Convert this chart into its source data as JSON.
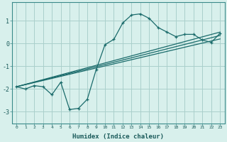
{
  "xlabel": "Humidex (Indice chaleur)",
  "background_color": "#d8f0ec",
  "grid_color": "#aacfcb",
  "line_color": "#1a6b6b",
  "xlim": [
    -0.5,
    23.5
  ],
  "ylim": [
    -3.5,
    1.8
  ],
  "yticks": [
    -3,
    -2,
    -1,
    0,
    1
  ],
  "xticks": [
    0,
    1,
    2,
    3,
    4,
    5,
    6,
    7,
    8,
    9,
    10,
    11,
    12,
    13,
    14,
    15,
    16,
    17,
    18,
    19,
    20,
    21,
    22,
    23
  ],
  "curve1_x": [
    0,
    1,
    2,
    3,
    4,
    5,
    6,
    7,
    8,
    9,
    10,
    11,
    12,
    13,
    14,
    15,
    16,
    17,
    18,
    19,
    20,
    21,
    22,
    23
  ],
  "curve1_y": [
    -1.9,
    -2.0,
    -1.85,
    -1.9,
    -2.25,
    -1.7,
    -2.9,
    -2.85,
    -2.45,
    -1.15,
    -0.05,
    0.18,
    0.9,
    1.25,
    1.3,
    1.1,
    0.7,
    0.5,
    0.3,
    0.4,
    0.4,
    0.15,
    0.05,
    0.45
  ],
  "line1_x": [
    0,
    23
  ],
  "line1_y": [
    -1.9,
    0.5
  ],
  "line2_x": [
    0,
    23
  ],
  "line2_y": [
    -1.9,
    0.35
  ],
  "line3_x": [
    0,
    23
  ],
  "line3_y": [
    -1.9,
    0.2
  ]
}
